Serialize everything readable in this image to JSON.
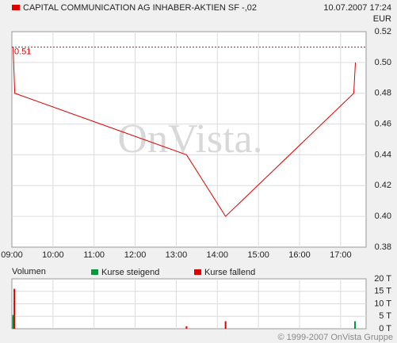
{
  "chart_data": [
    {
      "type": "line",
      "title": "CAPITAL COMMUNICATION AG INHABER-AKTIEN SF -,02",
      "date": "10.07.2007 17:24",
      "currency": "EUR",
      "watermark": "OnVista.",
      "color": "#e00000",
      "x": [
        9.03,
        9.07,
        13.25,
        14.2,
        17.32,
        17.36
      ],
      "values": [
        0.51,
        0.48,
        0.44,
        0.4,
        0.48,
        0.5
      ],
      "reference_value": 0.51,
      "xlim": [
        9,
        17.62
      ],
      "xticks": [
        {
          "value": 9,
          "label": "09:00"
        },
        {
          "value": 10,
          "label": "10:00"
        },
        {
          "value": 11,
          "label": "11:00"
        },
        {
          "value": 12,
          "label": "12:00"
        },
        {
          "value": 13,
          "label": "13:00"
        },
        {
          "value": 14,
          "label": "14:00"
        },
        {
          "value": 15,
          "label": "15:00"
        },
        {
          "value": 16,
          "label": "16:00"
        },
        {
          "value": 17,
          "label": "17:00"
        }
      ],
      "ylim": [
        0.38,
        0.52
      ],
      "yticks": [
        {
          "value": 0.52,
          "label": "0.52"
        },
        {
          "value": 0.5,
          "label": "0.50"
        },
        {
          "value": 0.48,
          "label": "0.48"
        },
        {
          "value": 0.46,
          "label": "0.46"
        },
        {
          "value": 0.44,
          "label": "0.44"
        },
        {
          "value": 0.42,
          "label": "0.42"
        },
        {
          "value": 0.4,
          "label": "0.40"
        },
        {
          "value": 0.38,
          "label": "0.38"
        }
      ],
      "grid": true
    },
    {
      "type": "bar",
      "title": "Volumen",
      "series": [
        {
          "name": "Kurse steigend",
          "color": "#009a3c",
          "x": [
            9.03,
            17.35
          ],
          "values": [
            5.5,
            3
          ]
        },
        {
          "name": "Kurse fallend",
          "color": "#e00000",
          "x": [
            9.06,
            13.25,
            14.2
          ],
          "values": [
            16,
            1,
            3
          ]
        }
      ],
      "xlim": [
        9,
        17.62
      ],
      "xticks": [
        9,
        10,
        11,
        12,
        13,
        14,
        15,
        16,
        17
      ],
      "ylim": [
        0,
        20
      ],
      "yticks": [
        {
          "value": 20,
          "label": "20 T"
        },
        {
          "value": 15,
          "label": "15 T"
        },
        {
          "value": 10,
          "label": "10 T"
        },
        {
          "value": 5,
          "label": "5 T"
        },
        {
          "value": 0,
          "label": "0 T"
        }
      ],
      "grid": true
    }
  ],
  "footer": "© 1999-2007 OnVista Gruppe"
}
